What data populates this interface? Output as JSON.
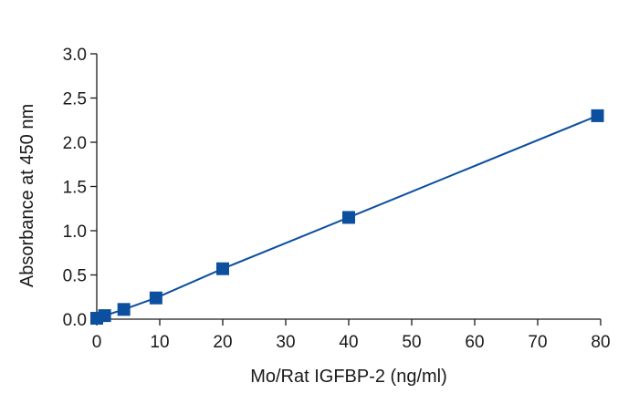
{
  "chart_data": {
    "type": "line",
    "title": "",
    "xlabel": "Mo/Rat IGFBP-2 (ng/ml)",
    "ylabel": "Absorbance at 450 nm",
    "xlim": [
      0,
      80
    ],
    "ylim": [
      0,
      3.0
    ],
    "x_ticks": [
      0,
      10,
      20,
      30,
      40,
      50,
      60,
      70,
      80
    ],
    "x_tick_labels": [
      "0",
      "10",
      "20",
      "30",
      "40",
      "50",
      "60",
      "70",
      "80"
    ],
    "y_ticks": [
      0,
      0.5,
      1.0,
      1.5,
      2.0,
      2.5,
      3.0
    ],
    "y_tick_labels": [
      "0.0",
      "0.5",
      "1.0",
      "1.5",
      "2.0",
      "2.5",
      "3.0"
    ],
    "grid": false,
    "legend": "none",
    "marker": "square",
    "series": [
      {
        "color": "#0b4f9e",
        "x": [
          0,
          1.25,
          4.3,
          9.4,
          20,
          40,
          79.5
        ],
        "y": [
          0.01,
          0.04,
          0.11,
          0.24,
          0.57,
          1.15,
          2.3
        ]
      }
    ]
  }
}
